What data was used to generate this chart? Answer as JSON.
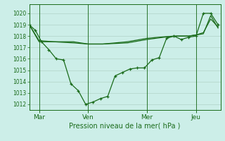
{
  "bg_color": "#cceee8",
  "grid_color": "#aaccc0",
  "line_color": "#1a6b1a",
  "ylim": [
    1011.5,
    1020.8
  ],
  "yticks": [
    1012,
    1013,
    1014,
    1015,
    1016,
    1017,
    1018,
    1019,
    1020
  ],
  "xlabel": "Pression niveau de la mer( hPa )",
  "day_labels": [
    "Mar",
    "Ven",
    "Mer",
    "Jeu"
  ],
  "day_positions": [
    8,
    48,
    96,
    136
  ],
  "xlim": [
    0,
    156
  ],
  "series1_x": [
    0,
    5,
    10,
    16,
    22,
    28,
    34,
    40,
    46,
    52,
    58,
    64,
    70,
    76,
    82,
    88,
    94,
    100,
    106,
    112,
    118,
    124,
    130,
    136,
    142,
    148,
    154
  ],
  "series1_y": [
    1019.0,
    1018.5,
    1017.5,
    1016.8,
    1016.0,
    1015.9,
    1013.8,
    1013.2,
    1012.0,
    1012.2,
    1012.5,
    1012.7,
    1014.5,
    1014.8,
    1015.1,
    1015.2,
    1015.2,
    1015.9,
    1016.1,
    1017.8,
    1018.0,
    1017.7,
    1017.9,
    1018.0,
    1020.0,
    1020.0,
    1019.0
  ],
  "series2_x": [
    0,
    8,
    20,
    36,
    48,
    60,
    70,
    80,
    96,
    106,
    118,
    130,
    136,
    142,
    148,
    154
  ],
  "series2_y": [
    1019.0,
    1017.5,
    1017.5,
    1017.5,
    1017.3,
    1017.3,
    1017.4,
    1017.5,
    1017.8,
    1017.9,
    1018.0,
    1018.0,
    1018.1,
    1018.3,
    1019.5,
    1018.8
  ],
  "series3_x": [
    0,
    8,
    20,
    36,
    48,
    60,
    80,
    96,
    110,
    120,
    130,
    136,
    142,
    148,
    154
  ],
  "series3_y": [
    1019.0,
    1017.6,
    1017.5,
    1017.4,
    1017.3,
    1017.3,
    1017.4,
    1017.7,
    1017.9,
    1018.0,
    1018.0,
    1018.1,
    1018.2,
    1019.8,
    1018.7
  ]
}
